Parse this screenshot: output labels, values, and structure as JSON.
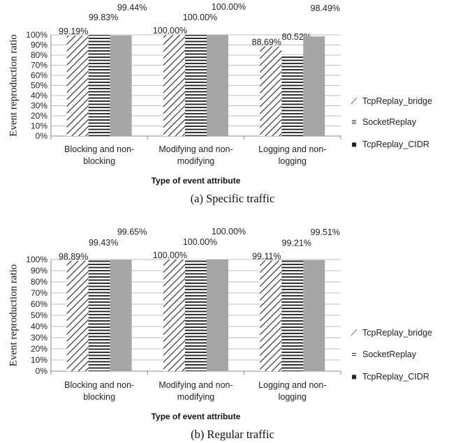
{
  "chart_data": [
    {
      "type": "bar",
      "caption": "(a) Specific traffic",
      "xlabel": "Type of event attribute",
      "ylabel": "Event reproduction ratio",
      "ylim": [
        0,
        100
      ],
      "yticks": [
        "0%",
        "10%",
        "20%",
        "30%",
        "40%",
        "50%",
        "60%",
        "70%",
        "80%",
        "90%",
        "100%"
      ],
      "categories": [
        [
          "Blocking and non-",
          "blocking"
        ],
        [
          "Modifying and non-",
          "modifying"
        ],
        [
          "Logging and non-",
          "logging"
        ]
      ],
      "legend_position": "right",
      "series": [
        {
          "name": "TcpReplay_bridge",
          "pattern": "diagonal",
          "legend_symbol": "⟋",
          "values": [
            99.19,
            100.0,
            88.69
          ],
          "labels": [
            "99.19%",
            "100.00%",
            "88.69%"
          ]
        },
        {
          "name": "SocketReplay",
          "pattern": "horizontal",
          "legend_symbol": "≡",
          "values": [
            99.83,
            100.0,
            80.52
          ],
          "labels": [
            "99.83%",
            "100.00%",
            "80.52%"
          ]
        },
        {
          "name": "TcpReplay_CIDR",
          "pattern": "solid",
          "legend_symbol": "■",
          "values": [
            99.44,
            100.0,
            98.49
          ],
          "labels": [
            "99.44%",
            "100.00%",
            "98.49%"
          ]
        }
      ]
    },
    {
      "type": "bar",
      "caption": "(b) Regular traffic",
      "xlabel": "Type of event attribute",
      "ylabel": "Event reproduction ratio",
      "ylim": [
        0,
        100
      ],
      "yticks": [
        "0%",
        "10%",
        "20%",
        "30%",
        "40%",
        "50%",
        "60%",
        "70%",
        "80%",
        "90%",
        "100%"
      ],
      "categories": [
        [
          "Blocking and non-",
          "blocking"
        ],
        [
          "Modifying and non-",
          "modifying"
        ],
        [
          "Logging and non-",
          "logging"
        ]
      ],
      "legend_position": "right",
      "series": [
        {
          "name": "TcpReplay_bridge",
          "pattern": "diagonal",
          "legend_symbol": "⟋",
          "values": [
            98.89,
            100.0,
            99.11
          ],
          "labels": [
            "98.89%",
            "100.00%",
            "99.11%"
          ]
        },
        {
          "name": "SocketReplay",
          "pattern": "horizontal",
          "legend_symbol": "=",
          "values": [
            99.43,
            100.0,
            99.21
          ],
          "labels": [
            "99.43%",
            "100.00%",
            "99.21%"
          ]
        },
        {
          "name": "TcpReplay_CIDR",
          "pattern": "solid",
          "legend_symbol": "■",
          "values": [
            99.65,
            100.0,
            99.51
          ],
          "labels": [
            "99.65%",
            "100.00%",
            "99.51%"
          ]
        }
      ]
    }
  ],
  "colors": {
    "axis": "#888888",
    "grid": "#bdbdbd",
    "hatch": "#222222",
    "solid_bar": "#a6a6a6"
  }
}
